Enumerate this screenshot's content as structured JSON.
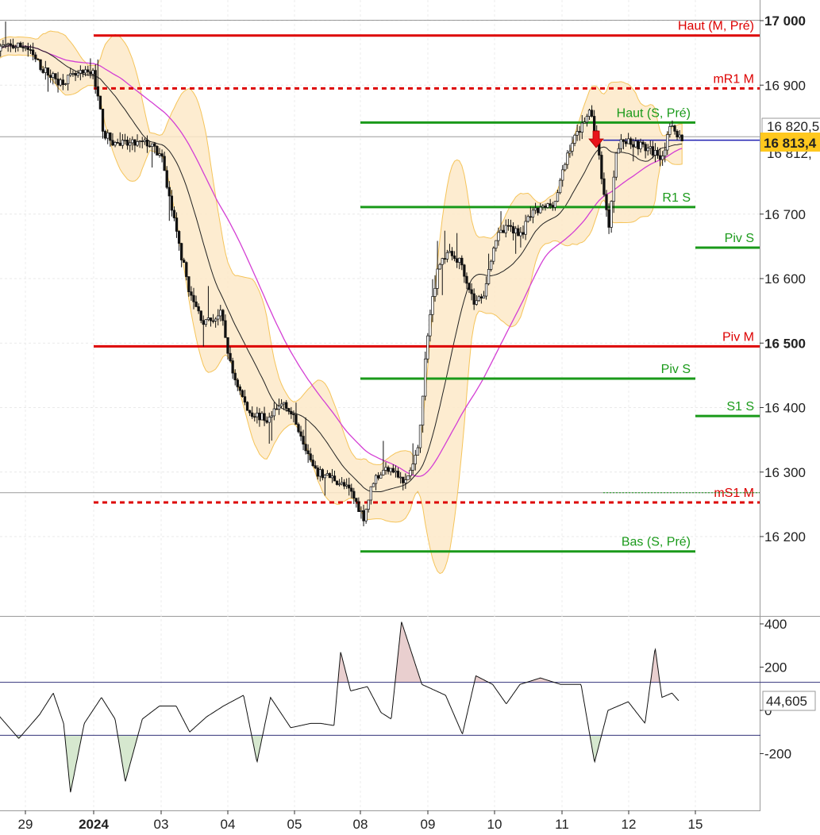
{
  "chart_data": [
    {
      "type": "candlestick",
      "ylim": [
        16100,
        17030
      ],
      "y_ticks": [
        "17 000",
        "16 900",
        "16 700",
        "16 600",
        "16 500",
        "16 400",
        "16 300",
        "16 200"
      ],
      "y_tick_values": [
        17000,
        16900,
        16700,
        16600,
        16500,
        16400,
        16300,
        16200
      ],
      "y_tick_bold": [
        true,
        false,
        false,
        false,
        true,
        false,
        false,
        false
      ],
      "x_ticks": [
        "29",
        "2024",
        "03",
        "04",
        "05",
        "08",
        "09",
        "10",
        "11",
        "12",
        "15"
      ],
      "x_tick_bold": [
        false,
        true,
        false,
        false,
        false,
        false,
        false,
        false,
        false,
        false,
        false
      ],
      "current_price_label": "16 813,4",
      "current_price": 16813.4,
      "partial_labels": [
        "16 820,5",
        "16 812,"
      ],
      "levels": [
        {
          "label": "Haut (M, Pré)",
          "value": 16977,
          "style": "solid",
          "color": "#dd0000"
        },
        {
          "label": "mR1 M",
          "value": 16895,
          "style": "dashed",
          "color": "#dd0000"
        },
        {
          "label": "Haut (S, Pré)",
          "value": 16842,
          "style": "solid",
          "color": "#1a9a1a"
        },
        {
          "label": "R1 S",
          "value": 16711,
          "style": "solid",
          "color": "#1a9a1a"
        },
        {
          "label": "Piv S",
          "value": 16648,
          "style": "solid",
          "color": "#1a9a1a"
        },
        {
          "label": "Piv M",
          "value": 16495,
          "style": "solid",
          "color": "#dd0000"
        },
        {
          "label": "Piv S",
          "value": 16445,
          "style": "solid",
          "color": "#1a9a1a"
        },
        {
          "label": "S1 S",
          "value": 16387,
          "style": "solid",
          "color": "#1a9a1a"
        },
        {
          "label": "mS1 M",
          "value": 16253,
          "style": "dashed",
          "color": "#dd0000"
        },
        {
          "label": "Bas (S, Pré)",
          "value": 16177,
          "style": "solid",
          "color": "#1a9a1a"
        }
      ],
      "price_path": [
        [
          0.0,
          16960
        ],
        [
          0.25,
          16925
        ],
        [
          0.5,
          16905
        ],
        [
          0.75,
          16915
        ],
        [
          1.0,
          16920
        ],
        [
          1.15,
          16825
        ],
        [
          1.3,
          16810
        ],
        [
          1.5,
          16808
        ],
        [
          1.8,
          16810
        ],
        [
          2.0,
          16790
        ],
        [
          2.25,
          16660
        ],
        [
          2.45,
          16570
        ],
        [
          2.65,
          16530
        ],
        [
          2.9,
          16545
        ],
        [
          3.05,
          16460
        ],
        [
          3.3,
          16395
        ],
        [
          3.6,
          16380
        ],
        [
          3.85,
          16410
        ],
        [
          4.1,
          16360
        ],
        [
          4.3,
          16300
        ],
        [
          4.6,
          16290
        ],
        [
          4.85,
          16270
        ],
        [
          5.05,
          16230
        ],
        [
          5.2,
          16290
        ],
        [
          5.45,
          16310
        ],
        [
          5.65,
          16280
        ],
        [
          5.85,
          16330
        ],
        [
          6.0,
          16520
        ],
        [
          6.15,
          16620
        ],
        [
          6.3,
          16640
        ],
        [
          6.5,
          16625
        ],
        [
          6.7,
          16560
        ],
        [
          6.85,
          16580
        ],
        [
          7.0,
          16660
        ],
        [
          7.2,
          16680
        ],
        [
          7.4,
          16670
        ],
        [
          7.55,
          16700
        ],
        [
          7.75,
          16710
        ],
        [
          7.9,
          16720
        ],
        [
          8.1,
          16800
        ],
        [
          8.25,
          16830
        ],
        [
          8.4,
          16860
        ],
        [
          8.5,
          16830
        ],
        [
          8.7,
          16680
        ],
        [
          8.8,
          16790
        ],
        [
          8.9,
          16815
        ],
        [
          9.1,
          16810
        ],
        [
          9.3,
          16800
        ],
        [
          9.5,
          16790
        ],
        [
          9.65,
          16840
        ],
        [
          9.8,
          16813
        ]
      ],
      "oscillator": {
        "y_ticks": [
          "400",
          "200",
          "0",
          "-200"
        ],
        "y_tick_values": [
          400,
          200,
          0,
          -200
        ],
        "upper_band": 130,
        "lower_band": -115,
        "current_value_label": "44,605",
        "path": [
          [
            0.0,
            -20
          ],
          [
            0.3,
            -130
          ],
          [
            0.6,
            -20
          ],
          [
            0.8,
            80
          ],
          [
            0.95,
            -60
          ],
          [
            1.05,
            -380
          ],
          [
            1.25,
            -60
          ],
          [
            1.5,
            60
          ],
          [
            1.7,
            -40
          ],
          [
            1.85,
            -330
          ],
          [
            2.1,
            -40
          ],
          [
            2.35,
            20
          ],
          [
            2.6,
            20
          ],
          [
            2.8,
            -100
          ],
          [
            3.05,
            -30
          ],
          [
            3.3,
            20
          ],
          [
            3.6,
            70
          ],
          [
            3.8,
            -240
          ],
          [
            4.0,
            60
          ],
          [
            4.3,
            -80
          ],
          [
            4.6,
            -60
          ],
          [
            4.75,
            -60
          ],
          [
            4.95,
            -70
          ],
          [
            5.05,
            270
          ],
          [
            5.2,
            90
          ],
          [
            5.45,
            110
          ],
          [
            5.65,
            -10
          ],
          [
            5.8,
            -40
          ],
          [
            5.95,
            410
          ],
          [
            6.25,
            120
          ],
          [
            6.6,
            70
          ],
          [
            6.85,
            -110
          ],
          [
            7.05,
            160
          ],
          [
            7.3,
            120
          ],
          [
            7.5,
            30
          ],
          [
            7.7,
            120
          ],
          [
            8.0,
            150
          ],
          [
            8.3,
            120
          ],
          [
            8.6,
            120
          ],
          [
            8.8,
            -240
          ],
          [
            9.0,
            0
          ],
          [
            9.3,
            40
          ],
          [
            9.55,
            -60
          ],
          [
            9.7,
            290
          ],
          [
            9.8,
            60
          ],
          [
            9.95,
            80
          ],
          [
            10.05,
            44.605
          ]
        ]
      }
    }
  ]
}
